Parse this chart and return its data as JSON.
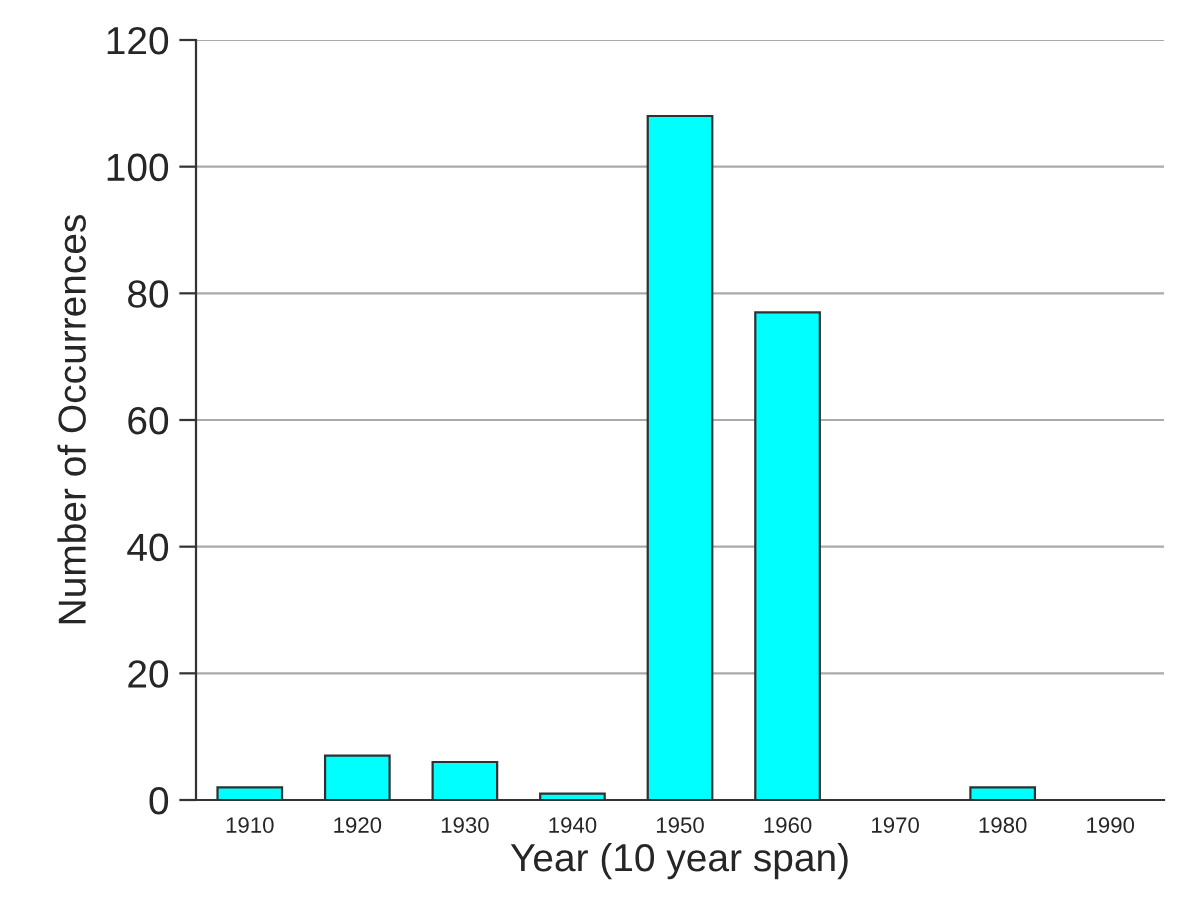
{
  "chart_data": {
    "type": "bar",
    "xlabel": "Year (10 year span)",
    "ylabel": "Number of Occurrences",
    "categories": [
      "1910",
      "1920",
      "1930",
      "1940",
      "1950",
      "1960",
      "1970",
      "1980",
      "1990"
    ],
    "values": [
      2,
      7,
      6,
      1,
      108,
      77,
      0,
      2,
      0
    ],
    "color": "#00ffff",
    "ylim": [
      0,
      120
    ],
    "yticks": [
      0,
      20,
      40,
      60,
      80,
      100,
      120
    ],
    "grid": "y",
    "legend": false
  }
}
